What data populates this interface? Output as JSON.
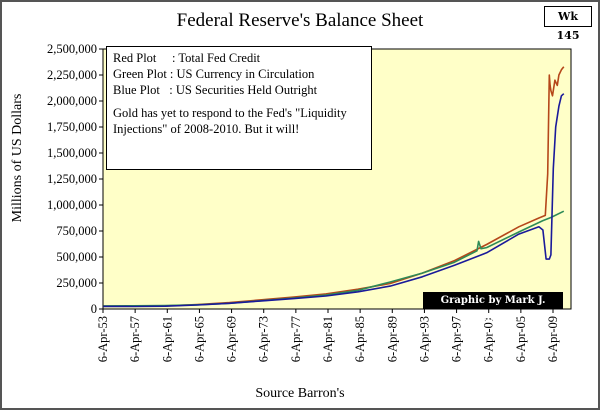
{
  "badge": "Wk 145",
  "chart_data": {
    "type": "line",
    "title": "Federal Reserve's Balance Sheet",
    "xlabel": "Source Barron's",
    "ylabel": "Millions of US Dollars",
    "ylim": [
      0,
      2500000
    ],
    "xlim": [
      1953.26,
      2011.5
    ],
    "grid": false,
    "y_ticks": [
      0,
      250000,
      500000,
      750000,
      1000000,
      1250000,
      1500000,
      1750000,
      2000000,
      2250000,
      2500000
    ],
    "y_tick_labels": [
      "0",
      "250,000",
      "500,000",
      "750,000",
      "1,000,000",
      "1,250,000",
      "1,500,000",
      "1,750,000",
      "2,000,000",
      "2,250,000",
      "2,500,000"
    ],
    "x_ticks": [
      1953.26,
      1957.26,
      1961.26,
      1965.26,
      1969.26,
      1973.26,
      1977.26,
      1981.26,
      1985.26,
      1989.26,
      1993.26,
      1997.26,
      2001.26,
      2005.26,
      2009.26
    ],
    "x_tick_labels": [
      "6-Apr-53",
      "6-Apr-57",
      "6-Apr-61",
      "6-Apr-65",
      "6-Apr-69",
      "6-Apr-73",
      "6-Apr-77",
      "6-Apr-81",
      "6-Apr-85",
      "6-Apr-89",
      "6-Apr-93",
      "6-Apr-97",
      "6-Apr-01",
      "6-Apr-05",
      "6-Apr-09"
    ],
    "series": [
      {
        "name": "Total Fed Credit",
        "color": "#b5471a",
        "x": [
          1953.3,
          1957,
          1961,
          1965,
          1969,
          1973,
          1977,
          1981,
          1985,
          1989,
          1993,
          1997,
          2001,
          2005,
          2007.5,
          2008.3,
          2008.6,
          2008.8,
          2008.9,
          2009.0,
          2009.2,
          2009.5,
          2009.8,
          2010.0,
          2010.3,
          2010.6
        ],
        "values": [
          27000,
          28000,
          30000,
          42000,
          62000,
          88000,
          115000,
          145000,
          190000,
          245000,
          345000,
          465000,
          620000,
          790000,
          875000,
          900000,
          1300000,
          2250000,
          2150000,
          2100000,
          2050000,
          2200000,
          2150000,
          2250000,
          2300000,
          2330000
        ]
      },
      {
        "name": "US Currency in Circulation",
        "color": "#2e8b57",
        "x": [
          1953.3,
          1957,
          1961,
          1965,
          1969,
          1973,
          1977,
          1981,
          1985,
          1989,
          1993,
          1997,
          1999.8,
          2000.0,
          2000.3,
          2001,
          2005,
          2008,
          2009,
          2010.6
        ],
        "values": [
          30000,
          31000,
          33000,
          40000,
          55000,
          80000,
          105000,
          135000,
          180000,
          260000,
          345000,
          450000,
          560000,
          650000,
          580000,
          590000,
          740000,
          850000,
          880000,
          940000
        ]
      },
      {
        "name": "US Securities Held Outright",
        "color": "#1a1a9a",
        "x": [
          1953.3,
          1957,
          1961,
          1965,
          1969,
          1973,
          1977,
          1981,
          1985,
          1989,
          1993,
          1997,
          2001,
          2005,
          2007.5,
          2008.0,
          2008.4,
          2008.8,
          2009.0,
          2009.3,
          2009.6,
          2010.0,
          2010.3,
          2010.6
        ],
        "values": [
          25000,
          24000,
          27000,
          38000,
          55000,
          78000,
          100000,
          125000,
          165000,
          220000,
          310000,
          420000,
          540000,
          720000,
          790000,
          760000,
          480000,
          480000,
          520000,
          1350000,
          1750000,
          1950000,
          2050000,
          2070000
        ]
      }
    ],
    "annotations": [
      "Red Plot     : Total Fed Credit",
      "Green Plot : US Currency in Circulation",
      "Blue Plot   : US Securities Held Outright",
      "Gold has yet to respond to the Fed's \"Liquidity Injections\" of 2008-2010.  But it will!",
      "Graphic by Mark J. Lundeen"
    ]
  }
}
